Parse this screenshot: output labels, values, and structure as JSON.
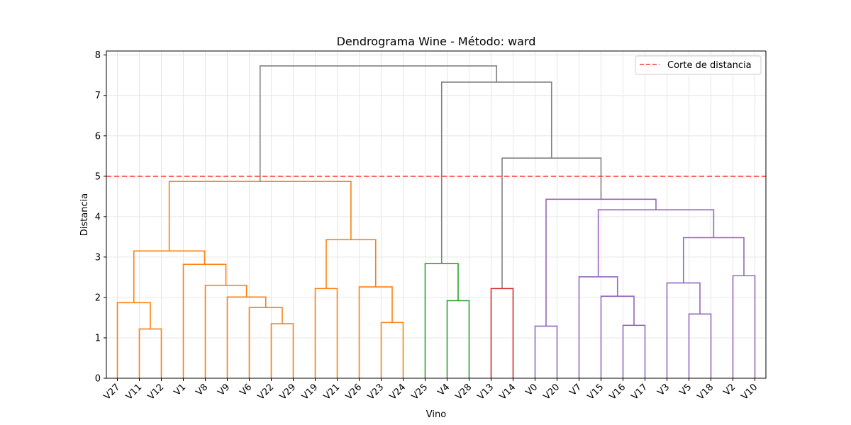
{
  "chart_data": {
    "type": "dendrogram",
    "title": "Dendrograma Wine - Método: ward",
    "xlabel": "Vino",
    "ylabel": "Distancia",
    "ylim": [
      0,
      8.1
    ],
    "yticks": [
      0,
      1,
      2,
      3,
      4,
      5,
      6,
      7,
      8
    ],
    "grid": true,
    "legend": {
      "position": "upper-right",
      "entries": [
        {
          "label": "Corte de distancia",
          "color": "#ff3333",
          "style": "dashed"
        }
      ]
    },
    "cut_line": {
      "y": 5.0,
      "color": "#ff3333"
    },
    "leaves": [
      "V27",
      "V11",
      "V12",
      "V1",
      "V8",
      "V9",
      "V6",
      "V22",
      "V29",
      "V19",
      "V21",
      "V26",
      "V23",
      "V24",
      "V25",
      "V4",
      "V28",
      "V13",
      "V14",
      "V0",
      "V20",
      "V7",
      "V15",
      "V16",
      "V17",
      "V3",
      "V5",
      "V18",
      "V2",
      "V10"
    ],
    "links": [
      {
        "left": 1,
        "right": 2,
        "height": 1.22,
        "color": "#ff7f0e"
      },
      {
        "left": 0,
        "right": 30,
        "height": 1.87,
        "color": "#ff7f0e"
      },
      {
        "left": 7,
        "right": 8,
        "height": 1.35,
        "color": "#ff7f0e"
      },
      {
        "left": 6,
        "right": 32,
        "height": 1.75,
        "color": "#ff7f0e"
      },
      {
        "left": 5,
        "right": 33,
        "height": 2.01,
        "color": "#ff7f0e"
      },
      {
        "left": 4,
        "right": 34,
        "height": 2.3,
        "color": "#ff7f0e"
      },
      {
        "left": 3,
        "right": 35,
        "height": 2.82,
        "color": "#ff7f0e"
      },
      {
        "left": 31,
        "right": 36,
        "height": 3.15,
        "color": "#ff7f0e"
      },
      {
        "left": 9,
        "right": 10,
        "height": 2.22,
        "color": "#ff7f0e"
      },
      {
        "left": 12,
        "right": 13,
        "height": 1.38,
        "color": "#ff7f0e"
      },
      {
        "left": 11,
        "right": 39,
        "height": 2.26,
        "color": "#ff7f0e"
      },
      {
        "left": 38,
        "right": 40,
        "height": 3.43,
        "color": "#ff7f0e"
      },
      {
        "left": 37,
        "right": 41,
        "height": 4.87,
        "color": "#ff7f0e"
      },
      {
        "left": 15,
        "right": 16,
        "height": 1.92,
        "color": "#2ca02c"
      },
      {
        "left": 14,
        "right": 43,
        "height": 2.84,
        "color": "#2ca02c"
      },
      {
        "left": 17,
        "right": 18,
        "height": 2.22,
        "color": "#d62728"
      },
      {
        "left": 19,
        "right": 20,
        "height": 1.29,
        "color": "#9467bd"
      },
      {
        "left": 23,
        "right": 24,
        "height": 1.31,
        "color": "#9467bd"
      },
      {
        "left": 22,
        "right": 47,
        "height": 2.03,
        "color": "#9467bd"
      },
      {
        "left": 21,
        "right": 48,
        "height": 2.51,
        "color": "#9467bd"
      },
      {
        "left": 26,
        "right": 27,
        "height": 1.59,
        "color": "#9467bd"
      },
      {
        "left": 25,
        "right": 50,
        "height": 2.36,
        "color": "#9467bd"
      },
      {
        "left": 28,
        "right": 29,
        "height": 2.54,
        "color": "#9467bd"
      },
      {
        "left": 51,
        "right": 52,
        "height": 3.48,
        "color": "#9467bd"
      },
      {
        "left": 49,
        "right": 53,
        "height": 4.17,
        "color": "#9467bd"
      },
      {
        "left": 46,
        "right": 54,
        "height": 4.43,
        "color": "#9467bd"
      },
      {
        "left": 45,
        "right": 55,
        "height": 5.45,
        "color": "#808080"
      },
      {
        "left": 44,
        "right": 56,
        "height": 7.33,
        "color": "#808080"
      },
      {
        "left": 42,
        "right": 57,
        "height": 7.73,
        "color": "#808080"
      }
    ]
  }
}
